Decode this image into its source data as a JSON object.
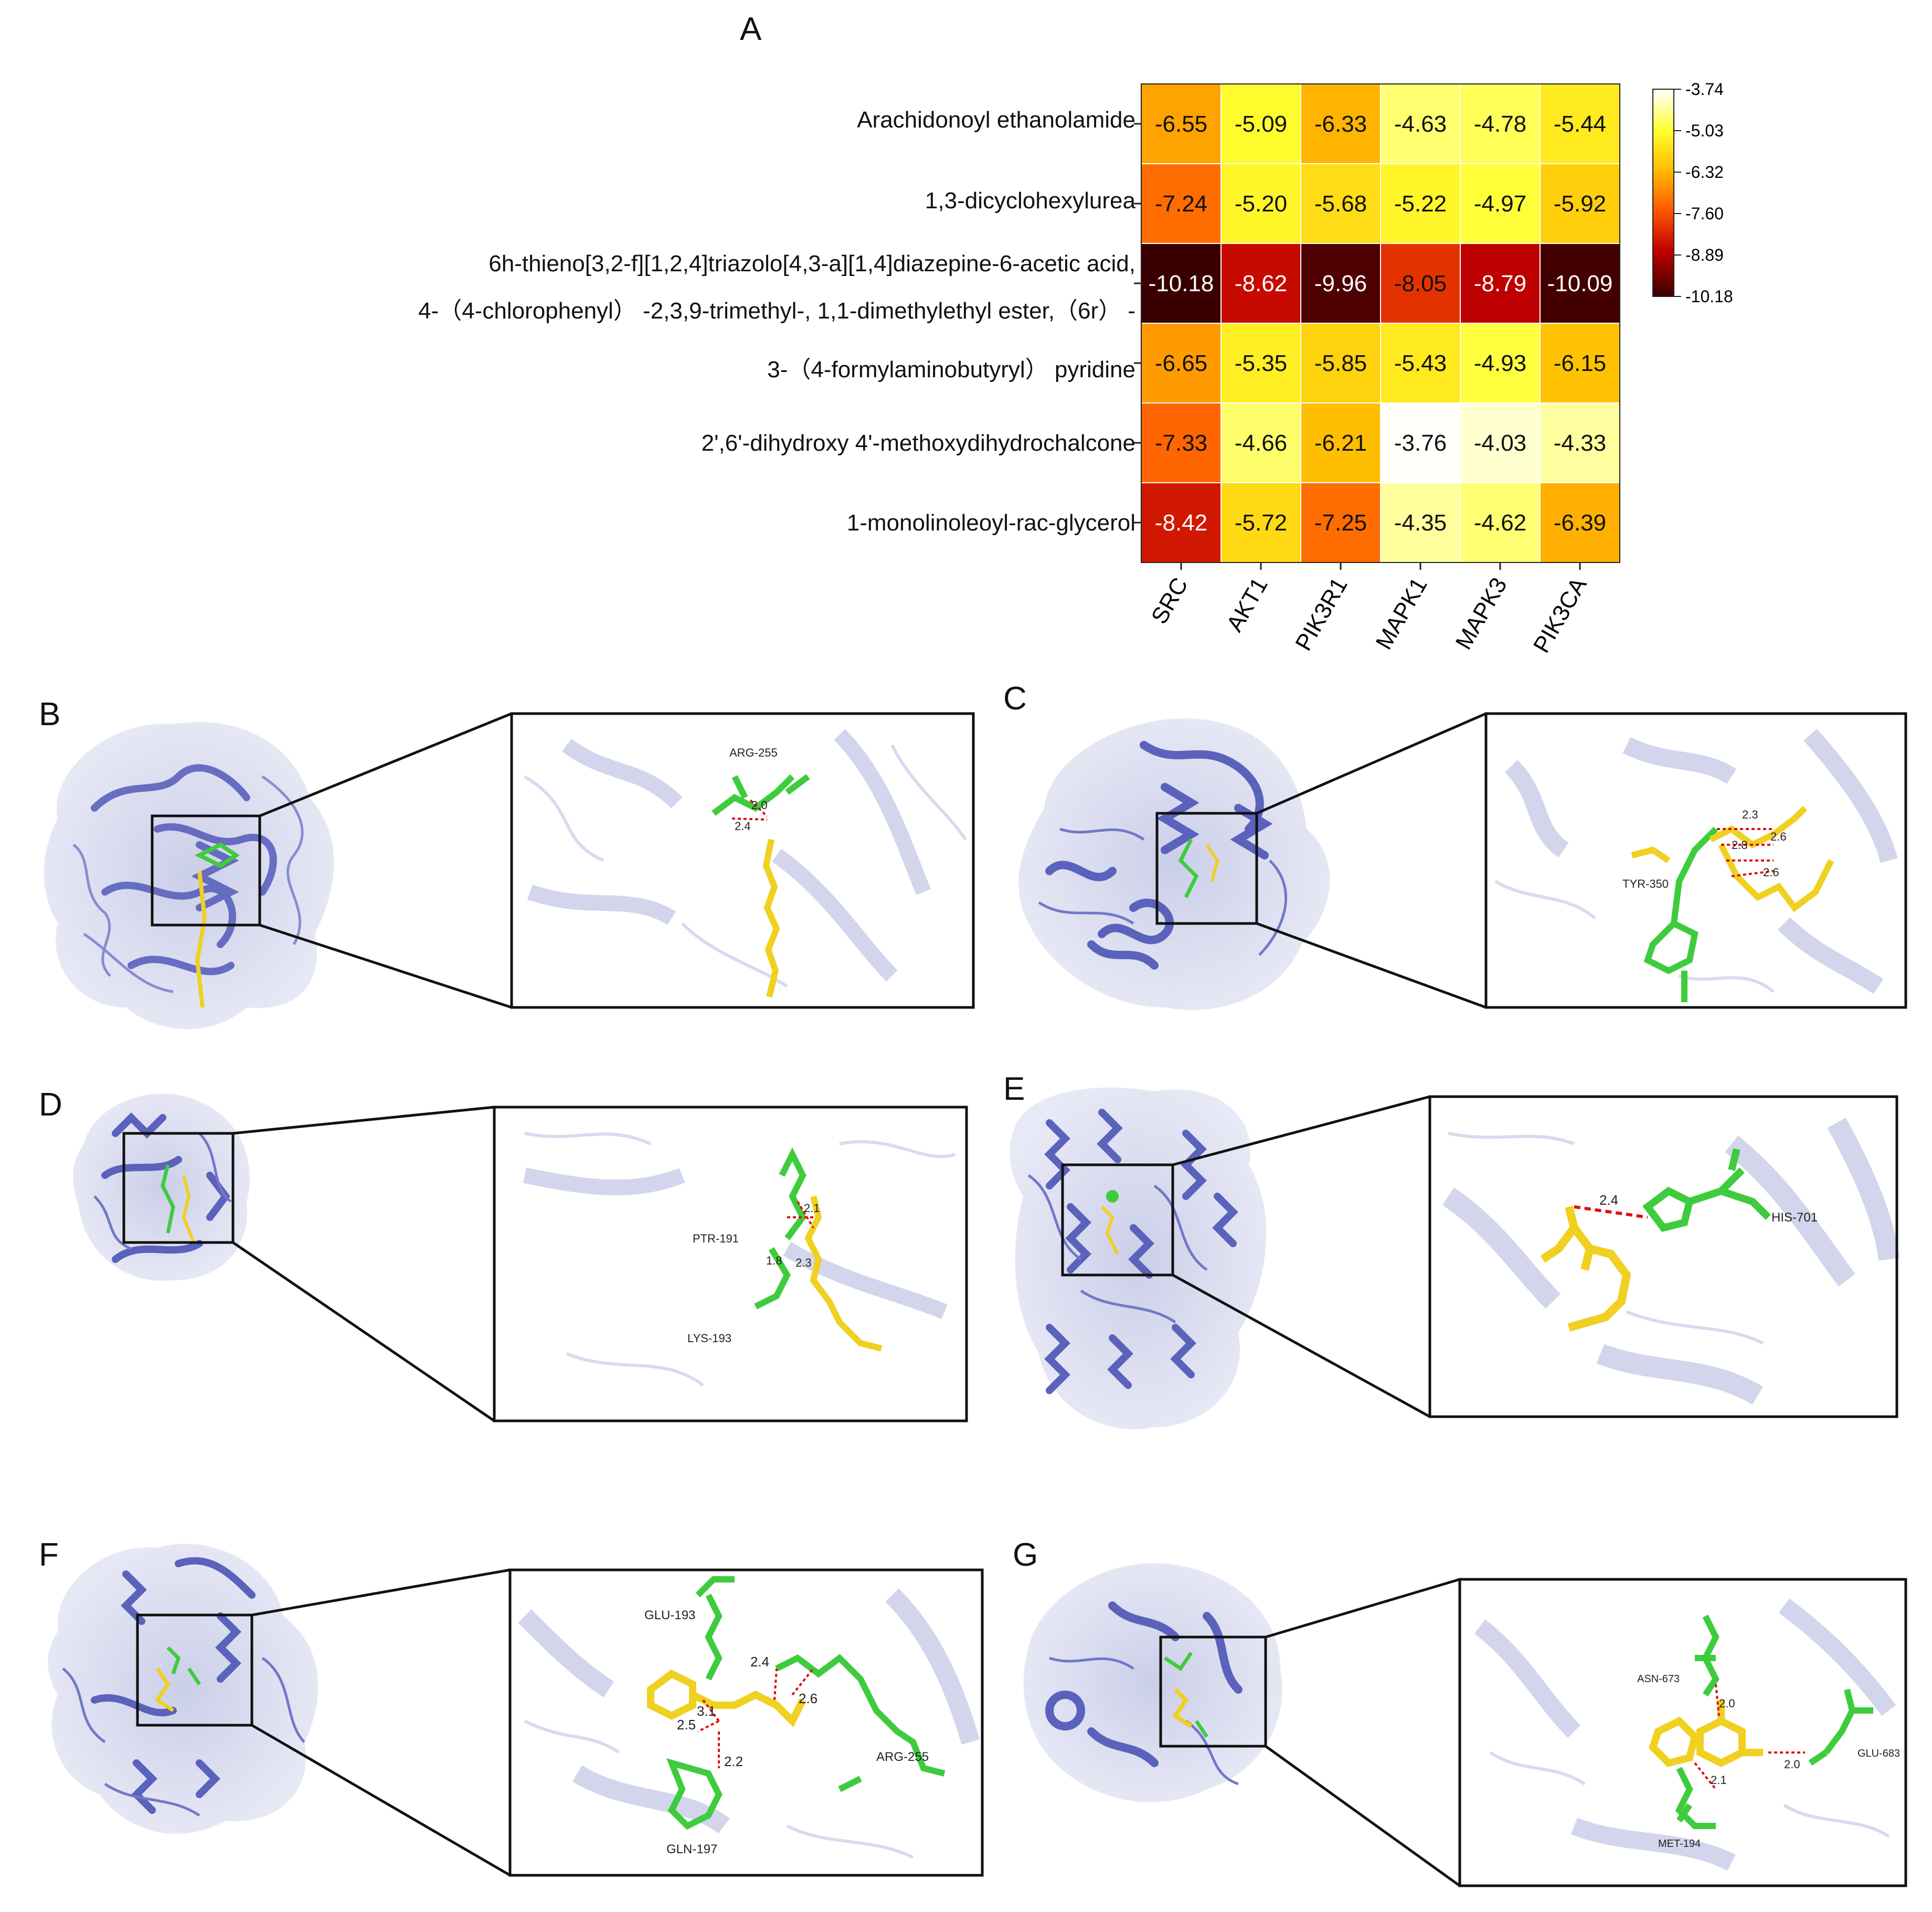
{
  "panels": {
    "A": "A",
    "B": "B",
    "C": "C",
    "D": "D",
    "E": "E",
    "F": "F",
    "G": "G"
  },
  "chart_data": {
    "type": "heatmap",
    "rows": [
      [
        "Arachidonoyl ethanolamide"
      ],
      [
        "1,3-dicyclohexylurea"
      ],
      [
        "6h-thieno[3,2-f][1,2,4]triazolo[4,3-a][1,4]diazepine-6-acetic acid,",
        "4-（4-chlorophenyl） -2,3,9-trimethyl-, 1,1-dimethylethyl ester,（6r） -"
      ],
      [
        "3-（4-formylaminobutyryl） pyridine"
      ],
      [
        "2',6'-dihydroxy 4'-methoxydihydrochalcone"
      ],
      [
        "1-monolinoleoyl-rac-glycerol"
      ]
    ],
    "columns": [
      "SRC",
      "AKT1",
      "PIK3R1",
      "MAPK1",
      "MAPK3",
      "PIK3CA"
    ],
    "values": [
      [
        -6.55,
        -5.09,
        -6.33,
        -4.63,
        -4.78,
        -5.44
      ],
      [
        -7.24,
        -5.2,
        -5.68,
        -5.22,
        -4.97,
        -5.92
      ],
      [
        -10.18,
        -8.62,
        -9.96,
        -8.05,
        -8.79,
        -10.09
      ],
      [
        -6.65,
        -5.35,
        -5.85,
        -5.43,
        -4.93,
        -6.15
      ],
      [
        -7.33,
        -4.66,
        -6.21,
        -3.76,
        -4.03,
        -4.33
      ],
      [
        -8.42,
        -5.72,
        -7.25,
        -4.35,
        -4.62,
        -6.39
      ]
    ],
    "value_labels": [
      [
        "-6.55",
        "-5.09",
        "-6.33",
        "-4.63",
        "-4.78",
        "-5.44"
      ],
      [
        "-7.24",
        "-5.20",
        "-5.68",
        "-5.22",
        "-4.97",
        "-5.92"
      ],
      [
        "-10.18",
        "-8.62",
        "-9.96",
        "-8.05",
        "-8.79",
        "-10.09"
      ],
      [
        "-6.65",
        "-5.35",
        "-5.85",
        "-5.43",
        "-4.93",
        "-6.15"
      ],
      [
        "-7.33",
        "-4.66",
        "-6.21",
        "-3.76",
        "-4.03",
        "-4.33"
      ],
      [
        "-8.42",
        "-5.72",
        "-7.25",
        "-4.35",
        "-4.62",
        "-6.39"
      ]
    ],
    "colorbar": {
      "ticks": [
        "-3.74",
        "-5.03",
        "-6.32",
        "-7.60",
        "-8.89",
        "-10.18"
      ],
      "range": [
        -10.18,
        -3.74
      ],
      "colors": [
        "#3a0000",
        "#d40000",
        "#ff6a00",
        "#ffd400",
        "#ffff40",
        "#ffffff"
      ]
    }
  },
  "docking": {
    "B": {
      "residues": [
        "ARG-255"
      ],
      "distances": [
        "2.0",
        "2.4"
      ]
    },
    "C": {
      "residues": [
        "TYR-350"
      ],
      "distances": [
        "2.3",
        "2.8",
        "2.6",
        "2.6"
      ]
    },
    "D": {
      "residues": [
        "PTR-191",
        "LYS-193"
      ],
      "distances": [
        "2.1",
        "1.8",
        "2.3"
      ]
    },
    "E": {
      "residues": [
        "HIS-701"
      ],
      "distances": [
        "2.4"
      ]
    },
    "F": {
      "residues": [
        "GLU-193",
        "ARG-255",
        "GLN-197"
      ],
      "distances": [
        "2.4",
        "2.6",
        "3.1",
        "2.5",
        "2.2"
      ]
    },
    "G": {
      "residues": [
        "ASN-673",
        "GLU-683",
        "MET-194"
      ],
      "distances": [
        "2.0",
        "2.0",
        "2.1"
      ]
    }
  },
  "colors": {
    "protein": "#6068c0",
    "surface": "#c9cde6",
    "ligand": "#f0d020",
    "residue": "#3ecc3e",
    "hbond": "#dd1111"
  }
}
